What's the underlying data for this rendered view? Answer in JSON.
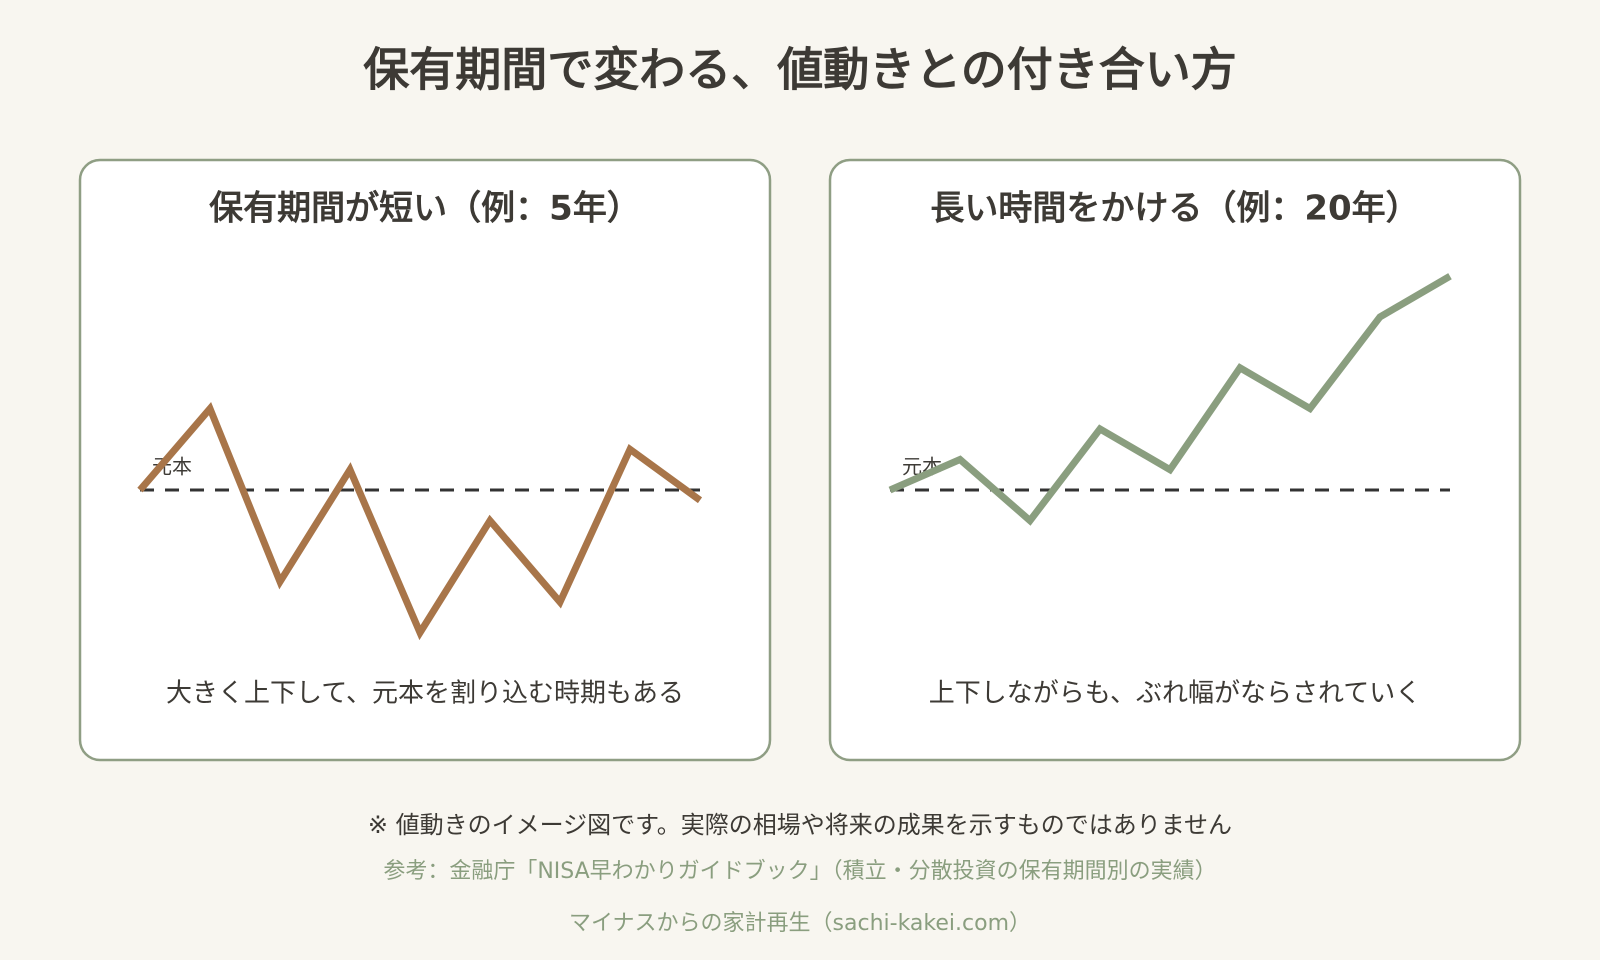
{
  "title": "保有期間で変わる、値動きとの付き合い方",
  "chart_data": [
    {
      "type": "line",
      "title": "保有期間が短い（例：5年）",
      "caption": "大きく上下して、元本を割り込む時期もある",
      "values": [
        0,
        8,
        -9,
        2,
        -14,
        -3,
        -11,
        4,
        -1
      ],
      "color": "#a87549",
      "ylim": [
        -16,
        22
      ],
      "baseline": {
        "value": 0,
        "label": "元本"
      }
    },
    {
      "type": "line",
      "title": "長い時間をかける（例：20年）",
      "caption": "上下しながらも、ぶれ幅がならされていく",
      "values": [
        0,
        3,
        -3,
        6,
        2,
        12,
        8,
        17,
        21
      ],
      "color": "#8a9e7f",
      "ylim": [
        -16,
        22
      ],
      "baseline": {
        "value": 0,
        "label": "元本"
      }
    }
  ],
  "note": "※ 値動きのイメージ図です。実際の相場や将来の成果を示すものではありません",
  "source": "参考：金融庁「NISA早わかりガイドブック」（積立・分散投資の保有期間別の実績）",
  "credit": "マイナスからの家計再生（sachi-kakei.com）"
}
